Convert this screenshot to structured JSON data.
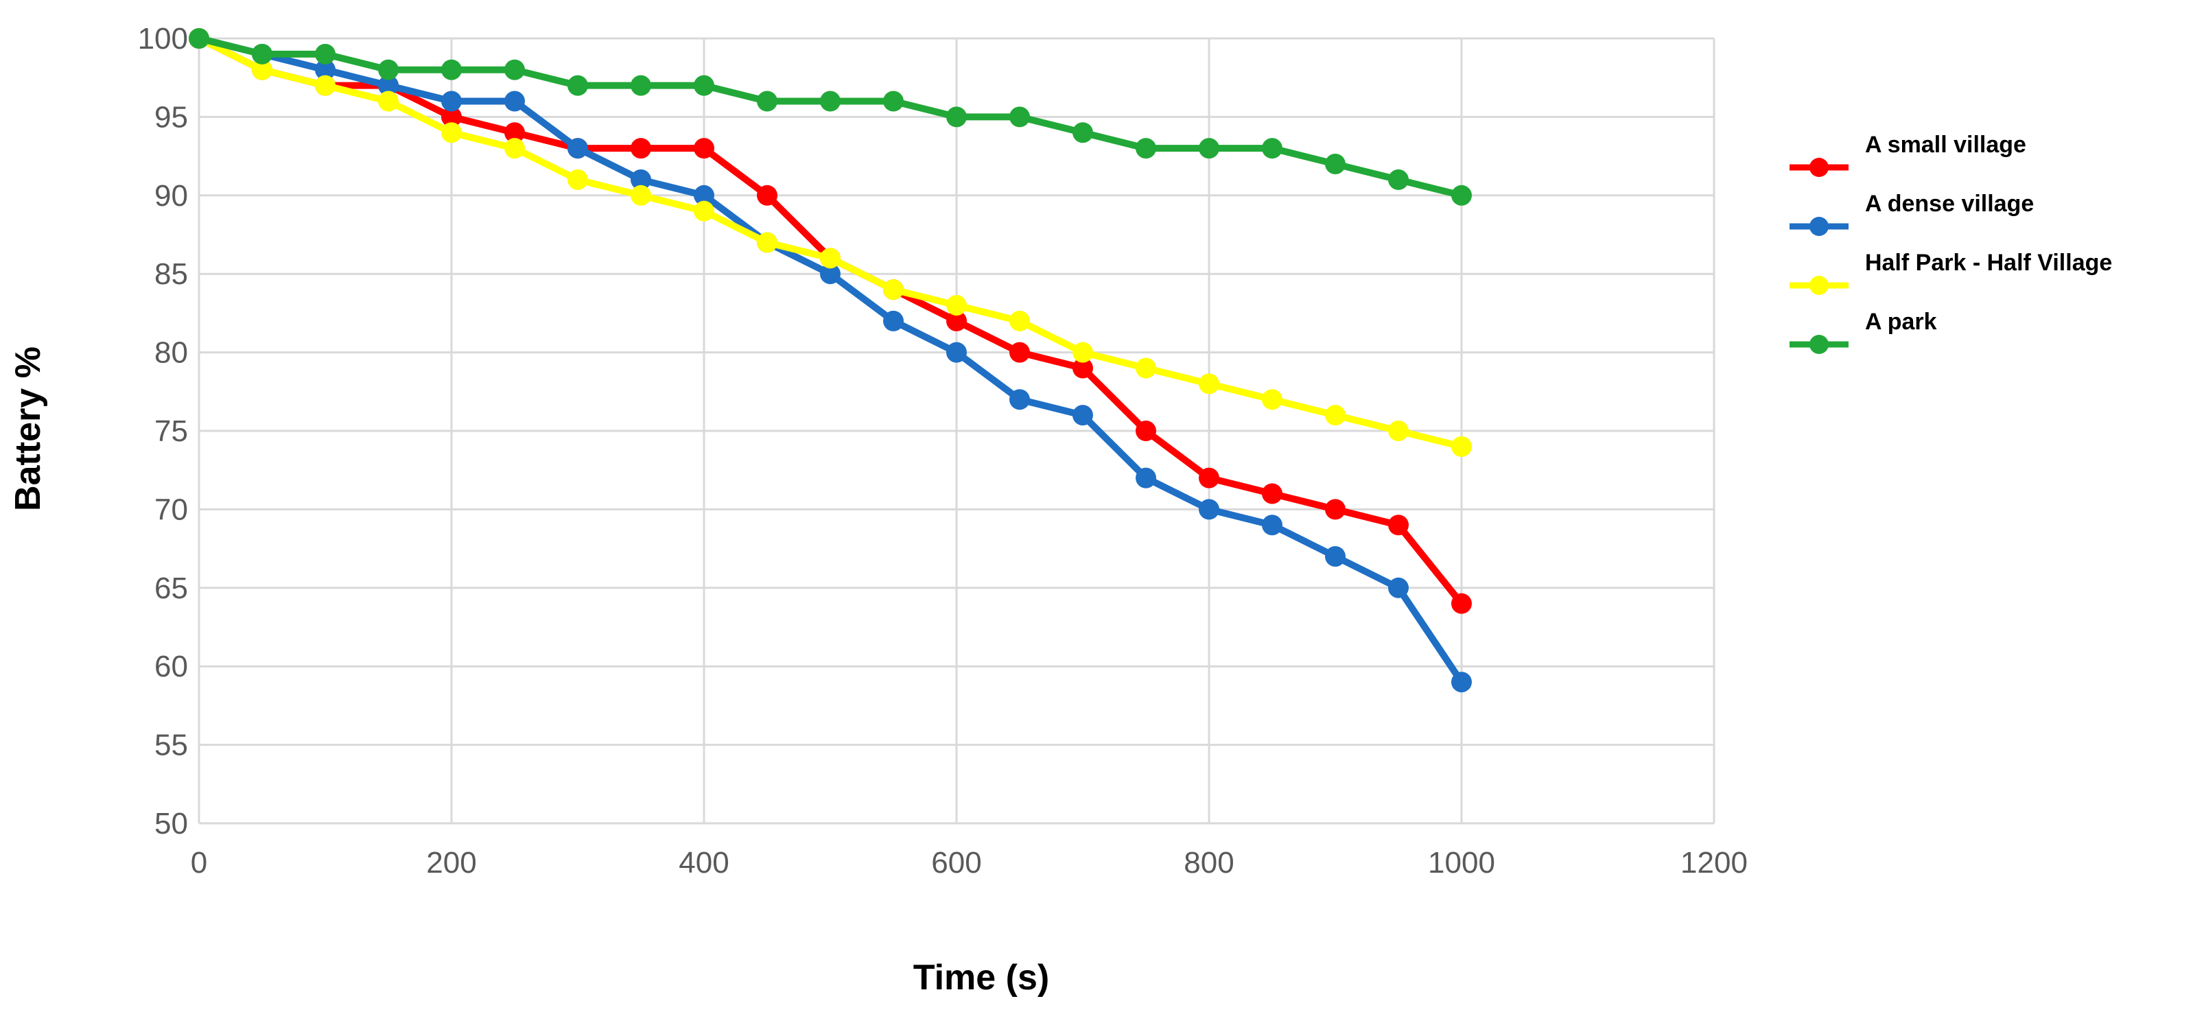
{
  "chart_data": {
    "type": "line",
    "title": "",
    "xlabel": "Time (s)",
    "ylabel": "Battery %",
    "xlim": [
      0,
      1200
    ],
    "ylim": [
      50,
      100
    ],
    "xticks": [
      0,
      200,
      400,
      600,
      800,
      1000,
      1200
    ],
    "yticks": [
      50,
      55,
      60,
      65,
      70,
      75,
      80,
      85,
      90,
      95,
      100
    ],
    "grid": true,
    "legend_position": "right",
    "x": [
      0,
      50,
      100,
      150,
      200,
      250,
      300,
      350,
      400,
      450,
      500,
      550,
      600,
      650,
      700,
      750,
      800,
      850,
      900,
      950,
      1000
    ],
    "series": [
      {
        "name": "A small village",
        "color": "#ff0000",
        "values": [
          100,
          98,
          97,
          97,
          95,
          94,
          93,
          93,
          93,
          90,
          86,
          84,
          82,
          80,
          79,
          75,
          72,
          71,
          70,
          69,
          64
        ]
      },
      {
        "name": "A dense village",
        "color": "#1f6fc5",
        "values": [
          100,
          99,
          98,
          97,
          96,
          96,
          93,
          91,
          90,
          87,
          85,
          82,
          80,
          77,
          76,
          72,
          70,
          69,
          67,
          65,
          59
        ]
      },
      {
        "name": "Half Park - Half Village",
        "color": "#ffff00",
        "values": [
          100,
          98,
          97,
          96,
          94,
          93,
          91,
          90,
          89,
          87,
          86,
          84,
          83,
          82,
          80,
          79,
          78,
          77,
          76,
          75,
          74
        ]
      },
      {
        "name": "A park",
        "color": "#22a838",
        "values": [
          100,
          99,
          99,
          98,
          98,
          98,
          97,
          97,
          97,
          96,
          96,
          96,
          95,
          95,
          94,
          93,
          93,
          93,
          92,
          91,
          90
        ]
      }
    ]
  }
}
